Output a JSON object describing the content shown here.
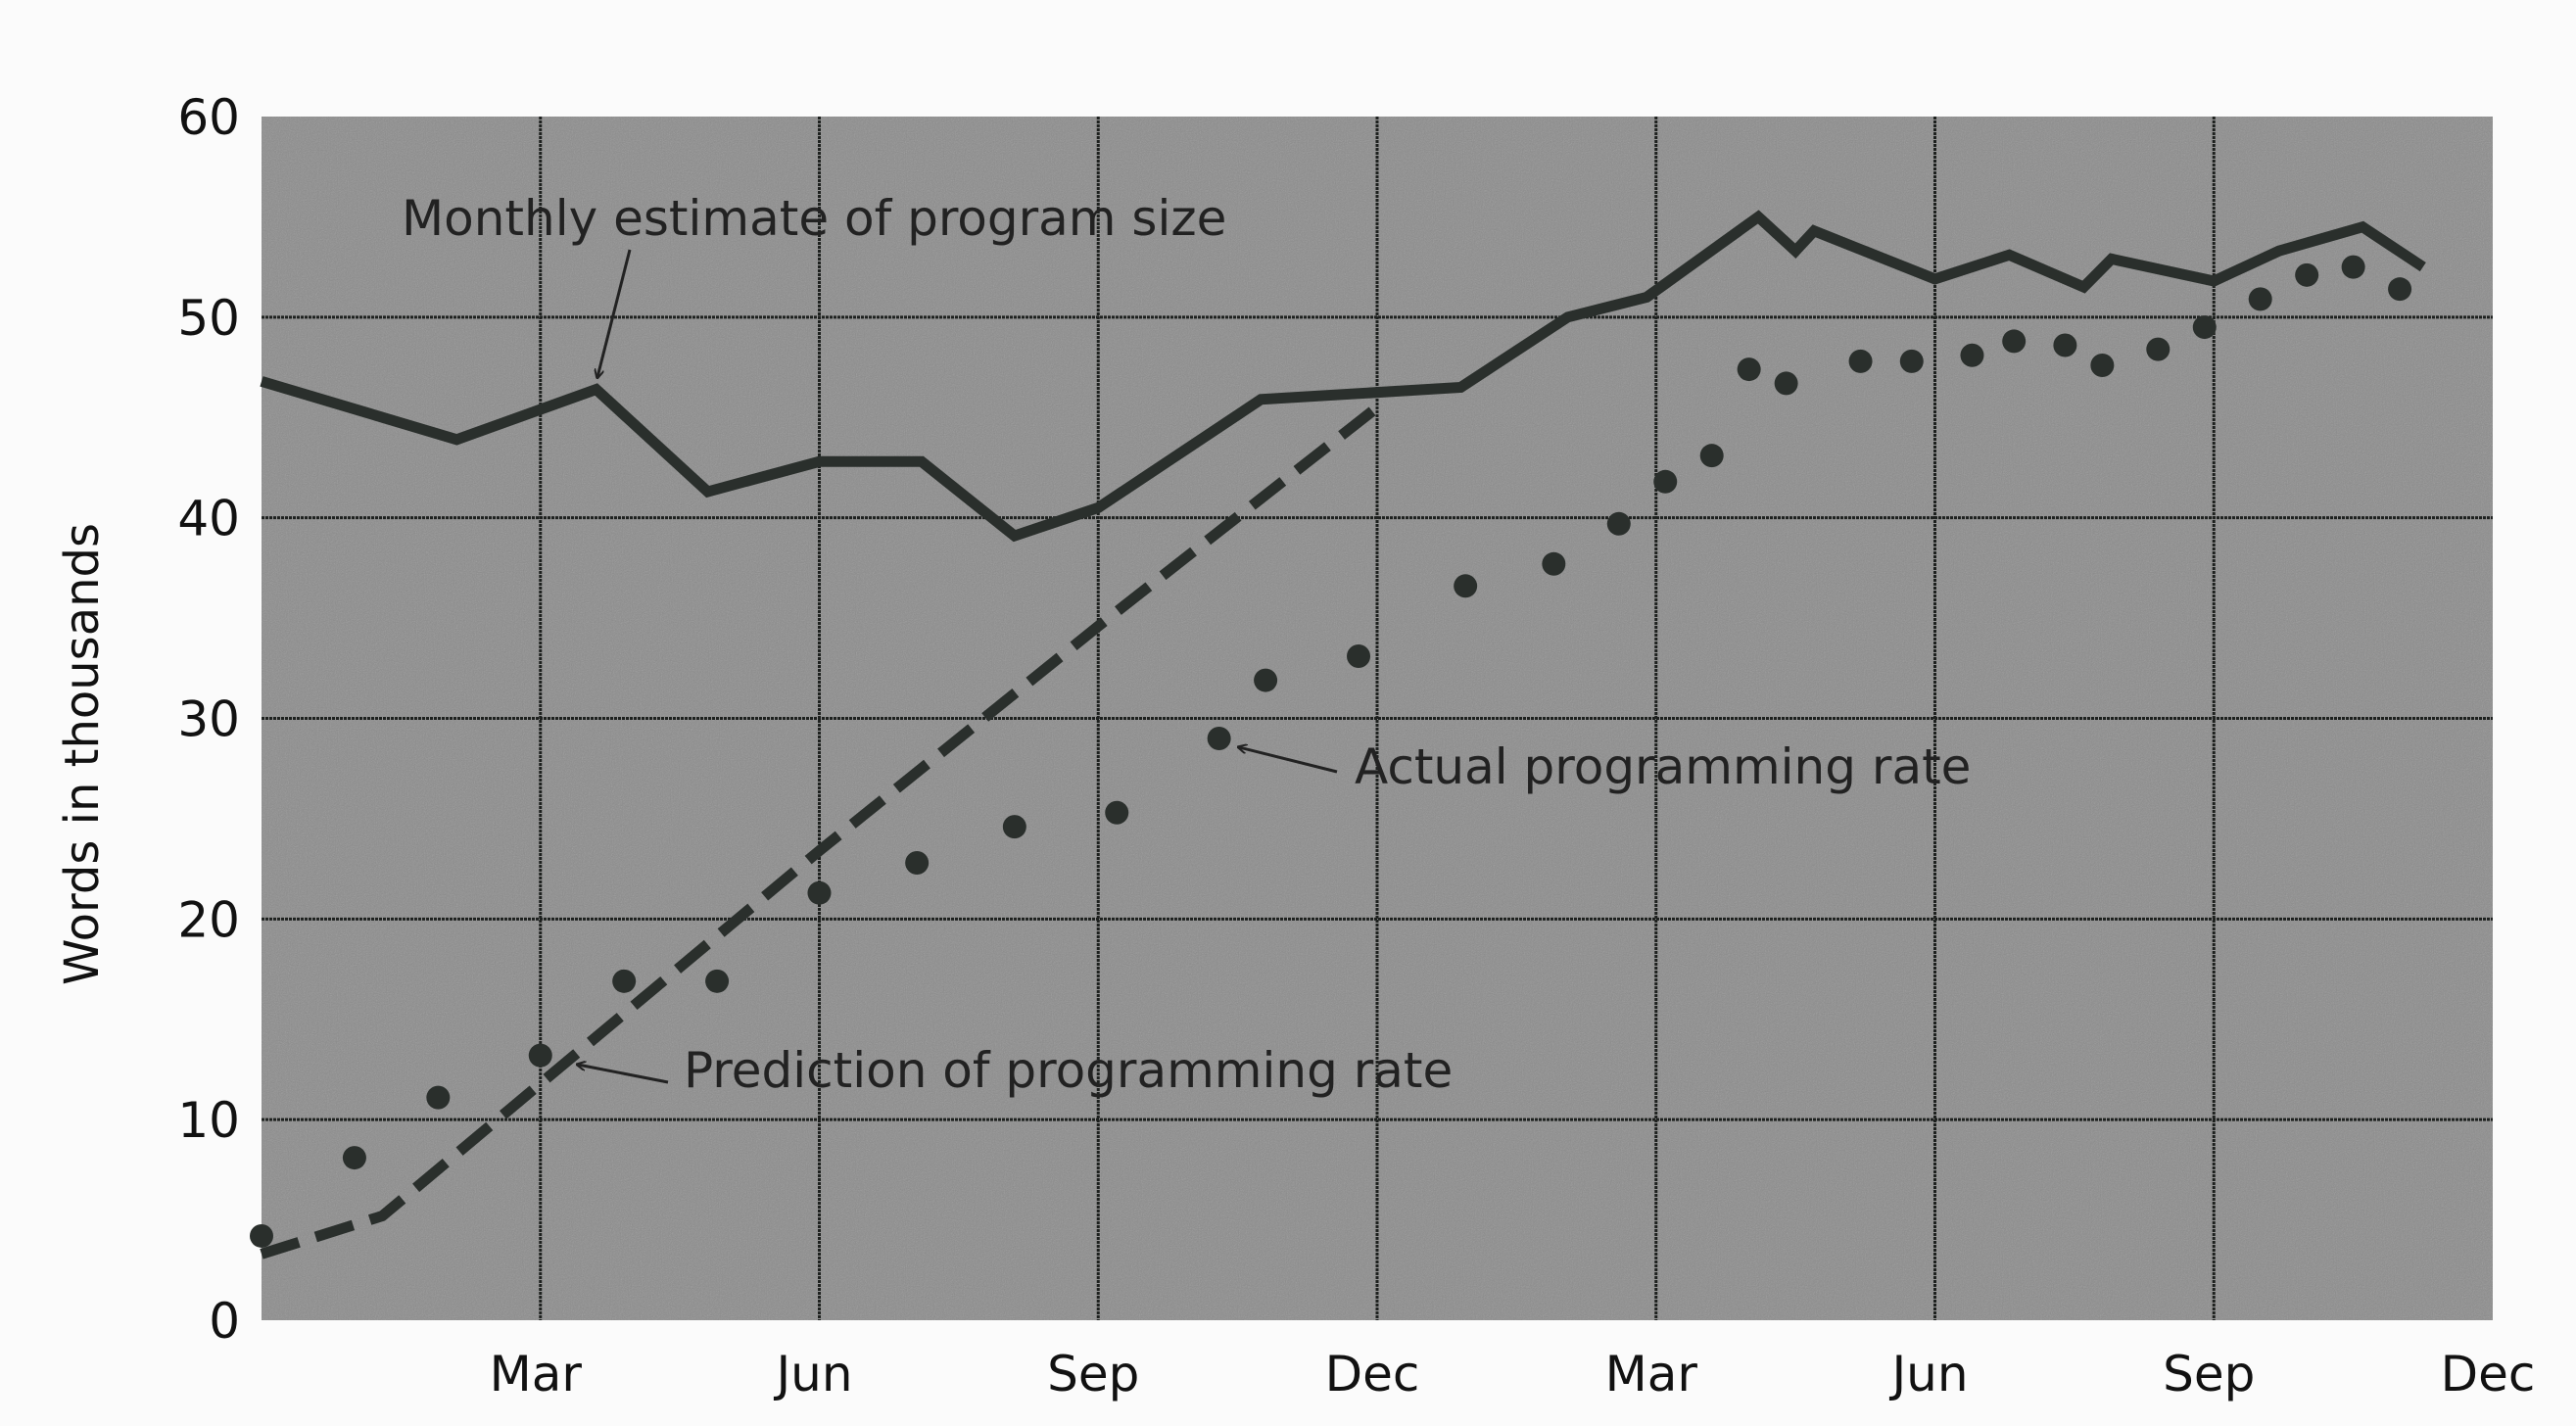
{
  "chart_data": {
    "type": "line",
    "title": "",
    "xlabel": "",
    "ylabel": "Words in thousands",
    "xlim": [
      0,
      24
    ],
    "ylim": [
      0,
      60
    ],
    "grid": true,
    "x_unit": "months",
    "x_ticks": [
      {
        "x": 3,
        "label": "Mar"
      },
      {
        "x": 6,
        "label": "Jun"
      },
      {
        "x": 9,
        "label": "Sep"
      },
      {
        "x": 12,
        "label": "Dec"
      },
      {
        "x": 15,
        "label": "Mar"
      },
      {
        "x": 18,
        "label": "Jun"
      },
      {
        "x": 21,
        "label": "Sep"
      },
      {
        "x": 24,
        "label": "Dec"
      }
    ],
    "y_ticks": [
      0,
      10,
      20,
      30,
      40,
      50,
      60
    ],
    "colors": {
      "plot_bg": "#8c8c8c",
      "ink": "#2a2f2c",
      "grid": "#1e211f"
    },
    "series": [
      {
        "name": "Monthly estimate of program size",
        "style": "solid",
        "points": [
          [
            0,
            46.8
          ],
          [
            2.1,
            43.9
          ],
          [
            3.6,
            46.4
          ],
          [
            4.8,
            41.3
          ],
          [
            6,
            42.8
          ],
          [
            7.1,
            42.8
          ],
          [
            8.1,
            39.1
          ],
          [
            9,
            40.5
          ],
          [
            10.75,
            45.9
          ],
          [
            12.9,
            46.5
          ],
          [
            14.05,
            50
          ],
          [
            14.9,
            51
          ],
          [
            16.1,
            55
          ],
          [
            16.5,
            53.3
          ],
          [
            16.7,
            54.3
          ],
          [
            18,
            51.9
          ],
          [
            18.8,
            53.1
          ],
          [
            19.6,
            51.5
          ],
          [
            19.9,
            52.9
          ],
          [
            21,
            51.8
          ],
          [
            21.7,
            53.3
          ],
          [
            22.6,
            54.5
          ],
          [
            23.25,
            52.5
          ]
        ]
      },
      {
        "name": "Prediction of programming rate",
        "style": "dashed",
        "points": [
          [
            0,
            3.3
          ],
          [
            1.3,
            5.2
          ],
          [
            3,
            11.8
          ],
          [
            6,
            23.4
          ],
          [
            9,
            34.6
          ],
          [
            12,
            45.5
          ]
        ]
      },
      {
        "name": "Actual programming rate",
        "style": "dots",
        "points": [
          [
            0,
            4.2
          ],
          [
            1,
            8.1
          ],
          [
            1.9,
            11.1
          ],
          [
            3,
            13.2
          ],
          [
            3.9,
            16.9
          ],
          [
            4.9,
            16.9
          ],
          [
            6,
            21.3
          ],
          [
            7.05,
            22.8
          ],
          [
            8.1,
            24.6
          ],
          [
            9.2,
            25.3
          ],
          [
            10.3,
            29
          ],
          [
            10.8,
            31.9
          ],
          [
            11.8,
            33.1
          ],
          [
            12.95,
            36.6
          ],
          [
            13.9,
            37.7
          ],
          [
            14.6,
            39.7
          ],
          [
            15.1,
            41.8
          ],
          [
            15.6,
            43.1
          ],
          [
            16,
            47.4
          ],
          [
            16.4,
            46.7
          ],
          [
            17.2,
            47.8
          ],
          [
            17.75,
            47.8
          ],
          [
            18.4,
            48.1
          ],
          [
            18.85,
            48.8
          ],
          [
            19.4,
            48.6
          ],
          [
            19.8,
            47.6
          ],
          [
            20.4,
            48.4
          ],
          [
            20.9,
            49.5
          ],
          [
            21.5,
            50.9
          ],
          [
            22,
            52.1
          ],
          [
            22.5,
            52.5
          ],
          [
            23,
            51.4
          ]
        ]
      }
    ],
    "annotations": [
      {
        "text": "Monthly estimate of program size",
        "target": [
          3.6,
          46.4
        ]
      },
      {
        "text": "Actual programming rate",
        "target": [
          10.3,
          29
        ]
      },
      {
        "text": "Prediction of programming rate",
        "target": [
          3.4,
          13
        ]
      }
    ]
  }
}
